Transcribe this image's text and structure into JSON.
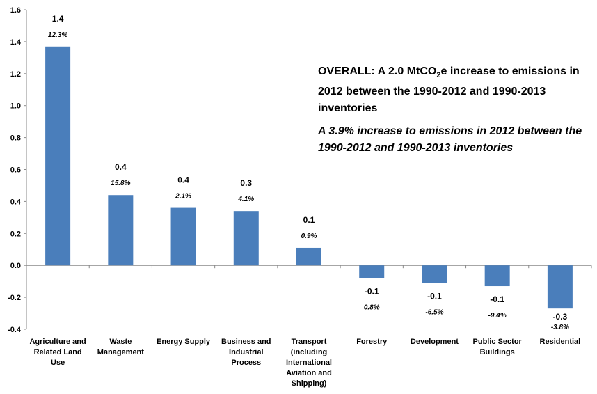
{
  "chart_data": {
    "type": "bar",
    "categories": [
      [
        "Agriculture and",
        "Related Land",
        "Use"
      ],
      [
        "Waste",
        "Management"
      ],
      [
        "Energy Supply"
      ],
      [
        "Business and",
        "Industrial",
        "Process"
      ],
      [
        "Transport",
        "(including",
        "International",
        "Aviation and",
        "Shipping)"
      ],
      [
        "Forestry"
      ],
      [
        "Development"
      ],
      [
        "Public Sector",
        "Buildings"
      ],
      [
        "Residential"
      ]
    ],
    "values": [
      1.37,
      0.44,
      0.36,
      0.34,
      0.11,
      -0.08,
      -0.11,
      -0.13,
      -0.27
    ],
    "value_labels": [
      "1.4",
      "0.4",
      "0.4",
      "0.3",
      "0.1",
      "-0.1",
      "-0.1",
      "-0.1",
      "-0.3"
    ],
    "percent_labels": [
      "12.3%",
      "15.8%",
      "2.1%",
      "4.1%",
      "0.9%",
      "0.8%",
      "-6.5%",
      "-9.4%",
      "-3.8%"
    ],
    "ylim": [
      -0.4,
      1.6
    ],
    "yticks": [
      "-0.4",
      "-0.2",
      "0.0",
      "0.2",
      "0.4",
      "0.6",
      "0.8",
      "1.0",
      "1.2",
      "1.4",
      "1.6"
    ],
    "bar_color": "#4a7ebb",
    "grid": false,
    "annotation": {
      "line1_prefix": "OVERALL:  A 2.0 MtCO",
      "line1_sub": "2",
      "line1_suffix": "e increase to emissions in 2012 between the 1990-2012 and 1990-2013 inventories",
      "line2": "A 3.9% increase to emissions in 2012 between the 1990-2012 and 1990-2013 inventories"
    }
  }
}
